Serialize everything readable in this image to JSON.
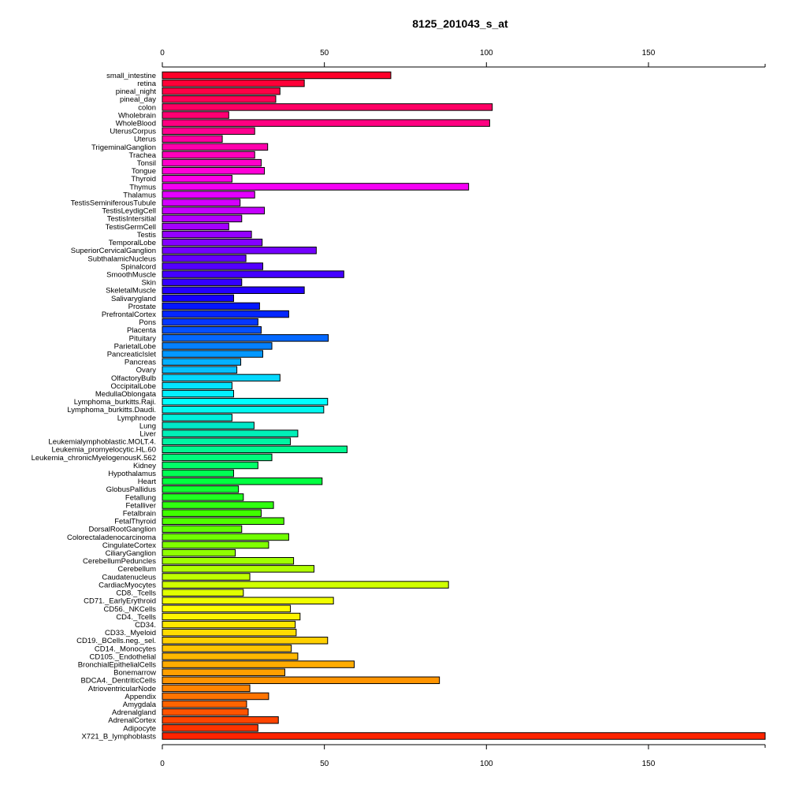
{
  "chart_data": {
    "type": "bar",
    "orientation": "horizontal",
    "title": "8125_201043_s_at",
    "xlabel": "",
    "ylabel": "",
    "xlim": [
      0,
      186
    ],
    "xticks": [
      0,
      50,
      100,
      150
    ],
    "axes": [
      "top",
      "bottom"
    ],
    "grid": false,
    "categories": [
      "small_intestine",
      "retina",
      "pineal_night",
      "pineal_day",
      "colon",
      "Wholebrain",
      "WholeBlood",
      "UterusCorpus",
      "Uterus",
      "TrigeminalGanglion",
      "Trachea",
      "Tonsil",
      "Tongue",
      "Thyroid",
      "Thymus",
      "Thalamus",
      "TestisSeminiferousTubule",
      "TestisLeydigCell",
      "TestisIntersitial",
      "TestisGermCell",
      "Testis",
      "TemporalLobe",
      "SuperiorCervicalGanglion",
      "SubthalamicNucleus",
      "Spinalcord",
      "SmoothMuscle",
      "Skin",
      "SkeletalMuscle",
      "Salivarygland",
      "Prostate",
      "PrefrontalCortex",
      "Pons",
      "Placenta",
      "Pituitary",
      "ParietalLobe",
      "PancreaticIslet",
      "Pancreas",
      "Ovary",
      "OlfactoryBulb",
      "OccipitalLobe",
      "MedullaOblongata",
      "Lymphoma_burkitts.Raji.",
      "Lymphoma_burkitts.Daudi.",
      "Lymphnode",
      "Lung",
      "Liver",
      "Leukemialymphoblastic.MOLT.4.",
      "Leukemia_promyelocytic.HL.60",
      "Leukemia_chronicMyelogenousK.562",
      "Kidney",
      "Hypothalamus",
      "Heart",
      "GlobusPallidus",
      "Fetallung",
      "Fetalliver",
      "Fetalbrain",
      "FetalThyroid",
      "DorsalRootGanglion",
      "Colorectaladenocarcinoma",
      "CingulateCortex",
      "CiliaryGanglion",
      "CerebellumPeduncles",
      "Cerebellum",
      "Caudatenucleus",
      "CardiacMyocytes",
      "CD8._Tcells",
      "CD71._EarlyErythroid",
      "CD56._NKCells",
      "CD4._Tcells",
      "CD34.",
      "CD33._Myeloid",
      "CD19._BCells.neg._sel.",
      "CD14._Monocytes",
      "CD105._Endothelial",
      "BronchialEpithelialCells",
      "Bonemarrow",
      "BDCA4._DentriticCells",
      "AtrioventricularNode",
      "Appendix",
      "Amygdala",
      "Adrenalgland",
      "AdrenalCortex",
      "Adipocyte",
      "X721_B_lymphoblasts"
    ],
    "values": [
      70.5,
      43.8,
      36.3,
      35.0,
      101.8,
      20.5,
      101.0,
      28.5,
      18.5,
      32.5,
      28.5,
      30.5,
      31.5,
      21.5,
      94.5,
      28.5,
      24.0,
      31.5,
      24.5,
      20.5,
      27.5,
      30.8,
      47.5,
      25.8,
      31.0,
      56.0,
      24.5,
      43.8,
      22.0,
      30.0,
      39.0,
      29.5,
      30.5,
      51.2,
      33.8,
      31.0,
      24.2,
      23.0,
      36.3,
      21.5,
      22.0,
      51.0,
      49.8,
      21.5,
      28.3,
      41.8,
      39.5,
      57.0,
      33.8,
      29.5,
      22.0,
      49.3,
      23.5,
      25.0,
      34.3,
      30.5,
      37.5,
      24.5,
      39.0,
      32.8,
      22.5,
      40.5,
      46.8,
      27.0,
      88.3,
      25.0,
      52.8,
      39.5,
      42.5,
      41.0,
      41.3,
      51.0,
      39.8,
      41.8,
      59.2,
      37.8,
      85.5,
      27.0,
      32.8,
      26.0,
      26.5,
      35.8,
      29.5,
      186.0
    ],
    "colors": [
      "#FF0029",
      "#FF0038",
      "#FF0046",
      "#FF0055",
      "#FF0064",
      "#FF0072",
      "#FF0081",
      "#FF008F",
      "#FF009E",
      "#FF00AC",
      "#FF00BB",
      "#FF00CA",
      "#FF00D8",
      "#FF00E7",
      "#F500F5",
      "#E400FF",
      "#D400FF",
      "#C400FF",
      "#B400FF",
      "#A400FF",
      "#9400FF",
      "#8400FF",
      "#7400FF",
      "#6400FF",
      "#5400FF",
      "#4400FF",
      "#3400FF",
      "#2400FF",
      "#1400FF",
      "#0417FF",
      "#0427FF",
      "#0437FF",
      "#0450FF",
      "#0468FF",
      "#0480FF",
      "#0498FF",
      "#04B0FF",
      "#04C0FF",
      "#04D8FF",
      "#04E4FF",
      "#04F0FF",
      "#00FFFF",
      "#00F8F0",
      "#00F0DC",
      "#00E8C8",
      "#00F0B8",
      "#00F4A4",
      "#00F890",
      "#00FC7C",
      "#00FF68",
      "#00FF54",
      "#00FF40",
      "#10FF30",
      "#20FF20",
      "#30FF10",
      "#40FF00",
      "#50FF00",
      "#60FF00",
      "#70FF00",
      "#80FF00",
      "#90FF00",
      "#A0FF00",
      "#B0FF00",
      "#C0FF00",
      "#D0FF00",
      "#E0FF00",
      "#F0FF00",
      "#FFFF00",
      "#FFF400",
      "#FFE800",
      "#FFDC00",
      "#FFD000",
      "#FFC400",
      "#FFB800",
      "#FFAC00",
      "#FFA000",
      "#FF9400",
      "#FF8400",
      "#FF7400",
      "#FF6400",
      "#FF5400",
      "#FF4400",
      "#FF3400",
      "#FF2400"
    ]
  }
}
